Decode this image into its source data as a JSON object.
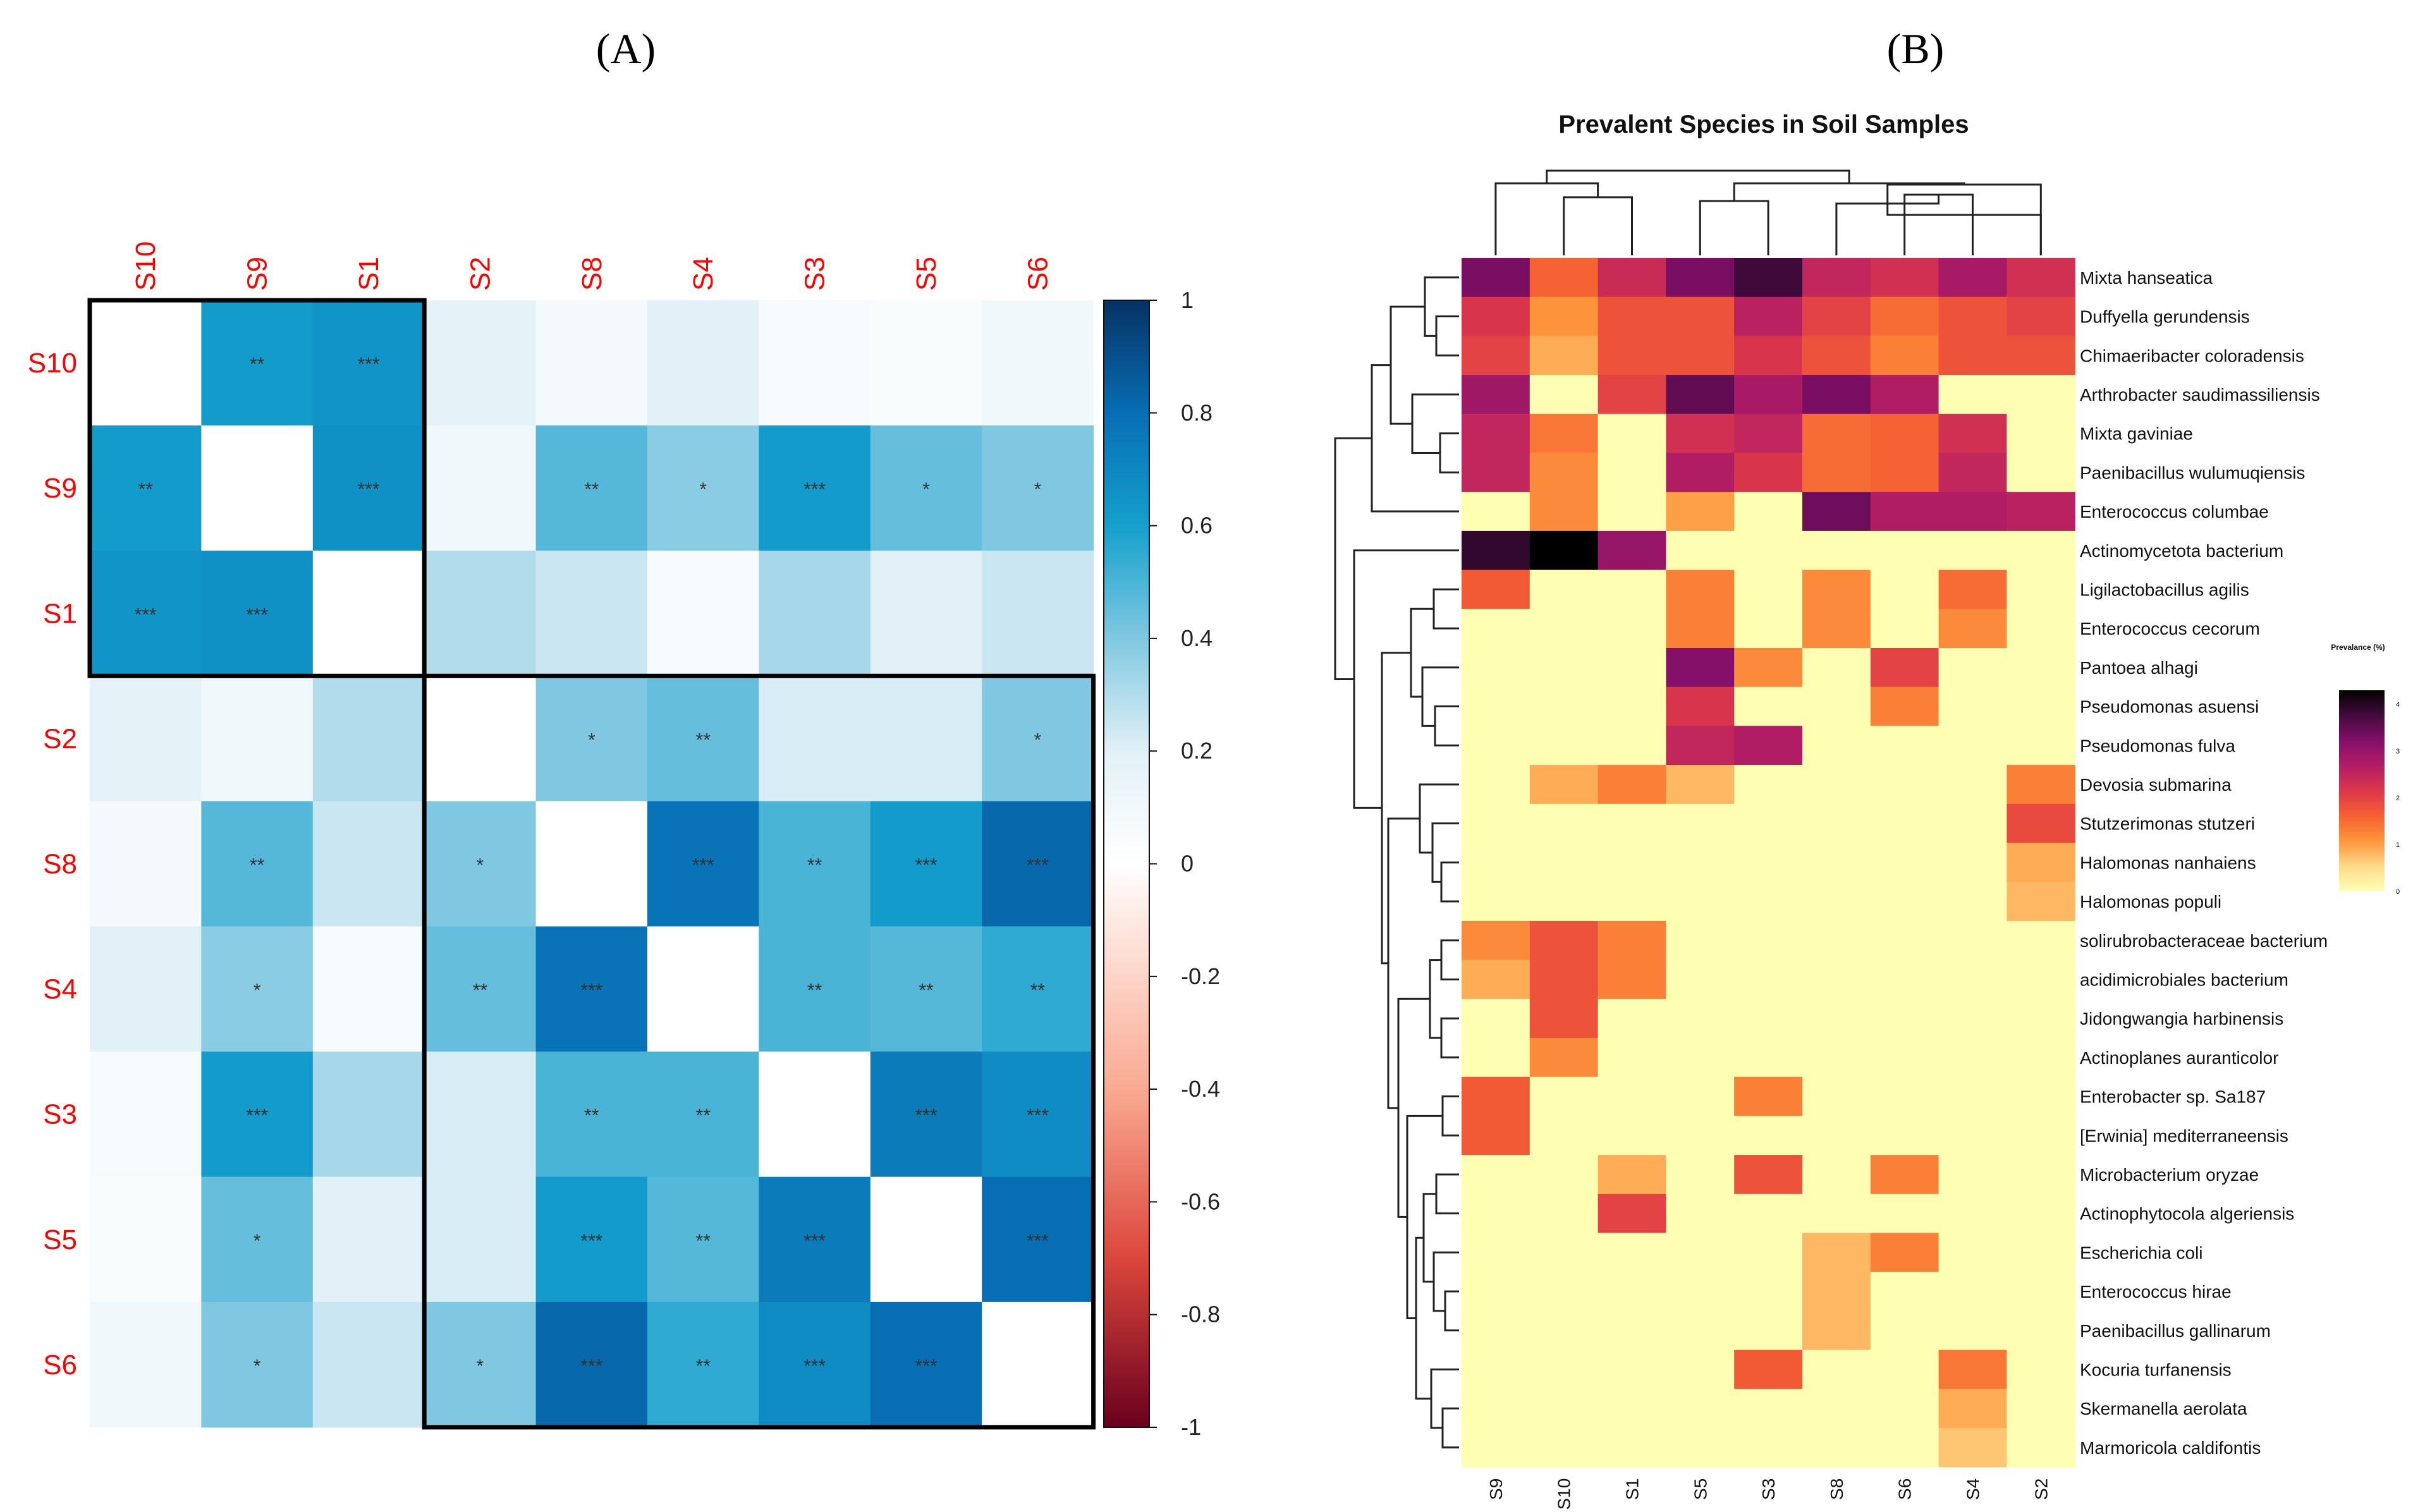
{
  "chart_data": [
    {
      "panel": "(A)",
      "type": "heatmap",
      "samples": [
        "S10",
        "S9",
        "S1",
        "S2",
        "S8",
        "S4",
        "S3",
        "S5",
        "S6"
      ],
      "colorbar_ticks": [
        "1",
        "0.8",
        "0.6",
        "0.4",
        "0.2",
        "0",
        "-0.2",
        "-0.4",
        "-0.6",
        "-0.8",
        "-1"
      ],
      "colorbar_range": [
        -1,
        1
      ],
      "values": [
        [
          1,
          0.62,
          0.65,
          0.18,
          0.08,
          0.2,
          0.05,
          0.04,
          0.1
        ],
        [
          0.62,
          1,
          0.66,
          0.1,
          0.48,
          0.38,
          0.62,
          0.45,
          0.4
        ],
        [
          0.65,
          0.66,
          1,
          0.3,
          0.25,
          0.05,
          0.32,
          0.2,
          0.25
        ],
        [
          0.18,
          0.1,
          0.3,
          1,
          0.4,
          0.45,
          0.22,
          0.22,
          0.4
        ],
        [
          0.08,
          0.48,
          0.25,
          0.4,
          1,
          0.78,
          0.5,
          0.62,
          0.82
        ],
        [
          0.2,
          0.38,
          0.05,
          0.45,
          0.78,
          1,
          0.5,
          0.48,
          0.55
        ],
        [
          0.05,
          0.62,
          0.32,
          0.22,
          0.5,
          0.5,
          1,
          0.75,
          0.68
        ],
        [
          0.04,
          0.45,
          0.2,
          0.22,
          0.62,
          0.48,
          0.75,
          1,
          0.8
        ],
        [
          0.1,
          0.4,
          0.25,
          0.4,
          0.82,
          0.55,
          0.68,
          0.8,
          1
        ]
      ],
      "significance": [
        [
          "",
          "**",
          "***",
          "",
          "",
          "",
          "",
          "",
          ""
        ],
        [
          "**",
          "",
          "***",
          "",
          "**",
          "*",
          "***",
          "*",
          "*"
        ],
        [
          "***",
          "***",
          "",
          "",
          "",
          "",
          "",
          "",
          ""
        ],
        [
          "",
          "",
          "",
          "",
          "*",
          "**",
          "",
          "",
          "*"
        ],
        [
          "",
          "**",
          "",
          "*",
          "",
          "***",
          "**",
          "***",
          "***"
        ],
        [
          "",
          "*",
          "",
          "**",
          "***",
          "",
          "**",
          "**",
          "**"
        ],
        [
          "",
          "***",
          "",
          "",
          "**",
          "**",
          "",
          "***",
          "***"
        ],
        [
          "",
          "*",
          "",
          "",
          "***",
          "**",
          "***",
          "",
          "***"
        ],
        [
          "",
          "*",
          "",
          "*",
          "***",
          "**",
          "***",
          "***",
          ""
        ]
      ],
      "clusters": [
        [
          0,
          2
        ],
        [
          3,
          8
        ]
      ]
    },
    {
      "panel": "(B)",
      "type": "heatmap",
      "title": "Prevalent Species in Soil Samples",
      "samples": [
        "S9",
        "S10",
        "S1",
        "S5",
        "S3",
        "S8",
        "S6",
        "S4",
        "S2"
      ],
      "species": [
        "Mixta hanseatica",
        "Duffyella gerundensis",
        "Chimaeribacter coloradensis",
        "Arthrobacter saudimassiliensis",
        "Mixta gaviniae",
        "Paenibacillus wulumuqiensis",
        "Enterococcus columbae",
        "Actinomycetota bacterium",
        "Ligilactobacillus agilis",
        "Enterococcus cecorum",
        "Pantoea alhagi",
        "Pseudomonas asuensi",
        "Pseudomonas fulva",
        "Devosia submarina",
        "Stutzerimonas stutzeri",
        "Halomonas nanhaiens",
        "Halomonas populi",
        "solirubrobacteraceae bacterium",
        "acidimicrobiales bacterium",
        "Jidongwangia harbinensis",
        "Actinoplanes auranticolor",
        "Enterobacter sp. Sa187",
        "[Erwinia] mediterraneensis",
        "Microbacterium oryzae",
        "Actinophytocola algeriensis",
        "Escherichia coli",
        "Enterococcus hirae",
        "Paenibacillus gallinarum",
        "Kocuria turfanensis",
        "Skermanella aerolata",
        "Marmoricola caldifontis"
      ],
      "values": [
        [
          3.3,
          1.6,
          2.4,
          3.3,
          3.8,
          2.5,
          2.3,
          2.8,
          2.3
        ],
        [
          2.2,
          1.1,
          1.8,
          1.8,
          2.6,
          2.0,
          1.5,
          1.8,
          2.0
        ],
        [
          2.0,
          0.9,
          1.8,
          1.8,
          2.2,
          1.8,
          1.3,
          1.8,
          1.8
        ],
        [
          2.9,
          0,
          2.0,
          3.5,
          2.8,
          3.3,
          2.7,
          0,
          0
        ],
        [
          2.5,
          1.4,
          0,
          2.3,
          2.5,
          1.5,
          1.6,
          2.3,
          0
        ],
        [
          2.5,
          1.2,
          0,
          2.7,
          2.2,
          1.5,
          1.6,
          2.5,
          0
        ],
        [
          0,
          1.2,
          0,
          1.0,
          0,
          3.4,
          2.7,
          2.7,
          2.6
        ],
        [
          3.9,
          4.3,
          3.0,
          0,
          0,
          0,
          0,
          0,
          0
        ],
        [
          1.7,
          0,
          0,
          1.3,
          0,
          1.2,
          0,
          1.5,
          0
        ],
        [
          0,
          0,
          0,
          1.3,
          0,
          1.2,
          0,
          1.2,
          0
        ],
        [
          0,
          0,
          0,
          3.2,
          1.2,
          0,
          2.0,
          0,
          0
        ],
        [
          0,
          0,
          0,
          2.2,
          0,
          0,
          1.3,
          0,
          0
        ],
        [
          0,
          0,
          0,
          2.5,
          2.7,
          0,
          0,
          0,
          0
        ],
        [
          0,
          0.9,
          1.3,
          0.8,
          0,
          0,
          0,
          0,
          1.3
        ],
        [
          0,
          0,
          0,
          0,
          0,
          0,
          0,
          0,
          1.9
        ],
        [
          0,
          0,
          0,
          0,
          0,
          0,
          0,
          0,
          0.9
        ],
        [
          0,
          0,
          0,
          0,
          0,
          0,
          0,
          0,
          0.8
        ],
        [
          1.2,
          1.8,
          1.3,
          0,
          0,
          0,
          0,
          0,
          0
        ],
        [
          0.9,
          1.8,
          1.3,
          0,
          0,
          0,
          0,
          0,
          0
        ],
        [
          0,
          1.8,
          0,
          0,
          0,
          0,
          0,
          0,
          0
        ],
        [
          0,
          1.2,
          0,
          0,
          0,
          0,
          0,
          0,
          0
        ],
        [
          1.7,
          0,
          0,
          0,
          1.3,
          0,
          0,
          0,
          0
        ],
        [
          1.7,
          0,
          0,
          0,
          0,
          0,
          0,
          0,
          0
        ],
        [
          0,
          0,
          0.9,
          0,
          1.8,
          0,
          1.3,
          0,
          0
        ],
        [
          0,
          0,
          2.0,
          0,
          0,
          0,
          0,
          0,
          0
        ],
        [
          0,
          0,
          0,
          0,
          0,
          0.8,
          1.3,
          0,
          0
        ],
        [
          0,
          0,
          0,
          0,
          0,
          0.8,
          0,
          0,
          0
        ],
        [
          0,
          0,
          0,
          0,
          0,
          0.8,
          0,
          0,
          0
        ],
        [
          0,
          0,
          0,
          0,
          1.7,
          0,
          0,
          1.4,
          0
        ],
        [
          0,
          0,
          0,
          0,
          0,
          0,
          0,
          0.9,
          0
        ],
        [
          0,
          0,
          0,
          0,
          0,
          0,
          0,
          0.7,
          0
        ]
      ],
      "legend_title": "Prevalance (%)",
      "legend_ticks": [
        "4",
        "3",
        "2",
        "1",
        "0"
      ],
      "legend_range": [
        0,
        4.3
      ]
    }
  ]
}
